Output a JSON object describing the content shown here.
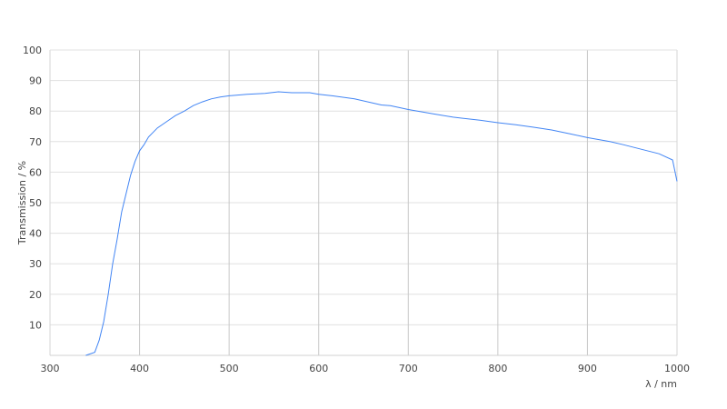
{
  "chart_data": {
    "type": "line",
    "title": "",
    "xlabel": "λ / nm",
    "ylabel": "Transmission / %",
    "xlim": [
      300,
      1000
    ],
    "ylim": [
      0,
      100
    ],
    "x_ticks": [
      300,
      400,
      500,
      600,
      700,
      800,
      900,
      1000
    ],
    "y_ticks": [
      10,
      20,
      30,
      40,
      50,
      60,
      70,
      80,
      90,
      100
    ],
    "grid": true,
    "line_color": "#4285f4",
    "series": [
      {
        "x": [
          340,
          350,
          355,
          360,
          365,
          370,
          375,
          380,
          385,
          390,
          395,
          400,
          405,
          410,
          420,
          430,
          440,
          450,
          460,
          470,
          480,
          490,
          500,
          520,
          540,
          555,
          570,
          590,
          600,
          615,
          640,
          670,
          680,
          700,
          730,
          750,
          780,
          800,
          820,
          840,
          860,
          880,
          900,
          925,
          940,
          960,
          980,
          995,
          1000
        ],
        "y": [
          0,
          1,
          5,
          11,
          20,
          30,
          38,
          47,
          53,
          59,
          63.5,
          67,
          69,
          71.5,
          74.5,
          76.5,
          78.5,
          80,
          81.8,
          83,
          84,
          84.6,
          85,
          85.5,
          85.8,
          86.3,
          86,
          86,
          85.5,
          85,
          84,
          82,
          81.8,
          80.5,
          79,
          78,
          77,
          76.2,
          75.5,
          74.7,
          73.8,
          72.6,
          71.3,
          70,
          69,
          67.5,
          66,
          64,
          57
        ]
      }
    ]
  }
}
